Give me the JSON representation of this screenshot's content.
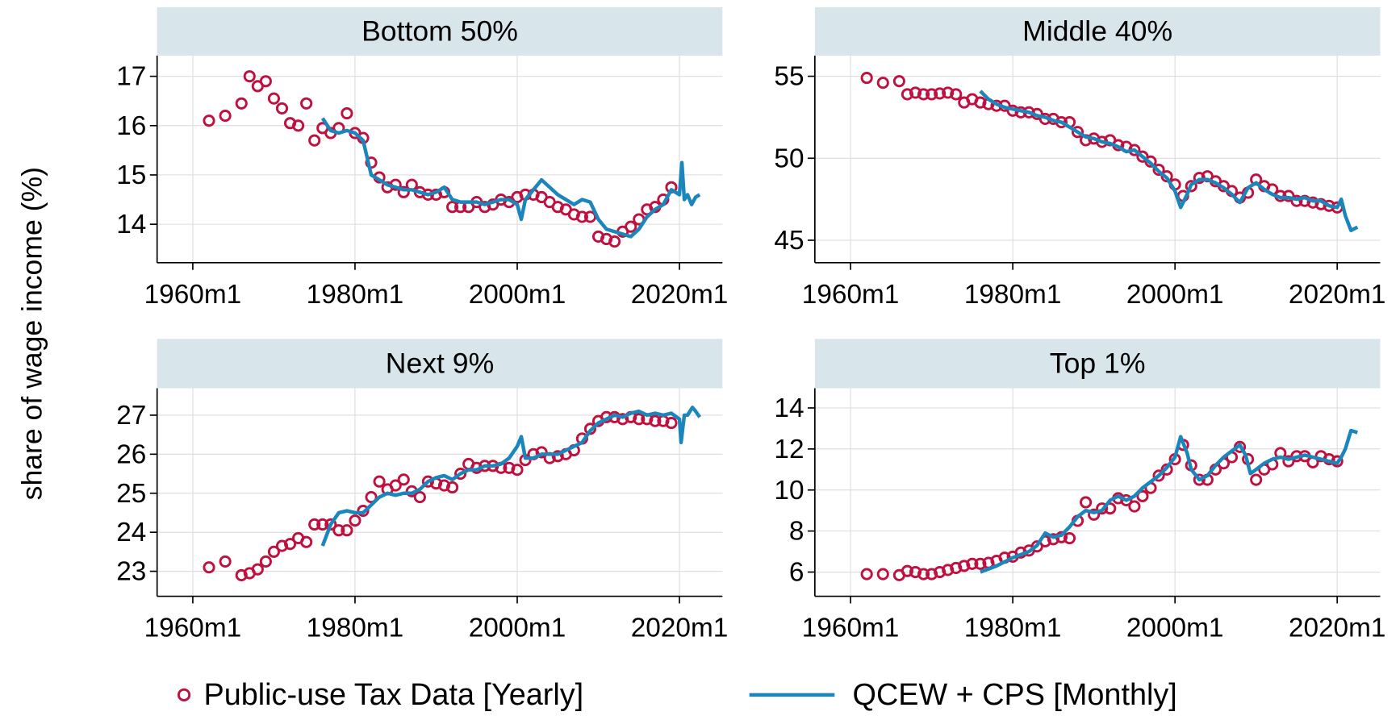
{
  "y_label": "share of wage income (%)",
  "legend": [
    {
      "name": "Public-use Tax Data [Yearly]",
      "color": "#c0103f",
      "marker": "circle"
    },
    {
      "name": "QCEW + CPS [Monthly]",
      "color": "#1a86bb",
      "marker": "line"
    }
  ],
  "chart_data": [
    {
      "type": "line",
      "title": "Bottom 50%",
      "grid": true,
      "xlim": [
        1955.6,
        2025.3
      ],
      "xticks": [
        {
          "value": 1960,
          "label": "1960m1"
        },
        {
          "value": 1980,
          "label": "1980m1"
        },
        {
          "value": 2000,
          "label": "2000m1"
        },
        {
          "value": 2020,
          "label": "2020m1"
        }
      ],
      "ylim": [
        13.22,
        17.42
      ],
      "yticks": [
        14,
        15,
        16,
        17
      ],
      "series": [
        {
          "x": [
            1962,
            1964,
            1966,
            1967,
            1968,
            1969,
            1970,
            1971,
            1972,
            1973,
            1974,
            1975,
            1976,
            1977,
            1978,
            1979,
            1980,
            1981,
            1982,
            1983,
            1984,
            1985,
            1986,
            1987,
            1988,
            1989,
            1990,
            1991,
            1992,
            1993,
            1994,
            1995,
            1996,
            1997,
            1998,
            1999,
            2000,
            2001,
            2002,
            2003,
            2004,
            2005,
            2006,
            2007,
            2008,
            2009,
            2010,
            2011,
            2012,
            2013,
            2014,
            2015,
            2016,
            2017,
            2018,
            2019
          ],
          "values": [
            16.1,
            16.2,
            16.45,
            17.0,
            16.8,
            16.9,
            16.55,
            16.35,
            16.05,
            16.0,
            16.45,
            15.7,
            15.95,
            15.85,
            15.95,
            16.25,
            15.85,
            15.75,
            15.25,
            14.95,
            14.75,
            14.8,
            14.65,
            14.8,
            14.65,
            14.6,
            14.6,
            14.65,
            14.35,
            14.35,
            14.35,
            14.45,
            14.35,
            14.4,
            14.5,
            14.45,
            14.55,
            14.6,
            14.6,
            14.55,
            14.45,
            14.35,
            14.3,
            14.2,
            14.15,
            14.15,
            13.75,
            13.7,
            13.65,
            13.85,
            13.95,
            14.1,
            14.3,
            14.35,
            14.5,
            14.75
          ]
        },
        {
          "x": [
            1976,
            1977,
            1978,
            1979,
            1980,
            1981,
            1982,
            1983,
            1984,
            1985,
            1986,
            1987,
            1988,
            1989,
            1990,
            1991,
            1992,
            1993,
            1994,
            1995,
            1996,
            1997,
            1998,
            1999,
            2000,
            2000.5,
            2001,
            2002,
            2003,
            2004,
            2005,
            2006,
            2007,
            2008,
            2009,
            2010,
            2011,
            2012,
            2013,
            2014,
            2015,
            2016,
            2017,
            2018,
            2019,
            2020,
            2020.3,
            2020.6,
            2021,
            2021.5,
            2022,
            2022.5
          ],
          "values": [
            16.15,
            15.9,
            15.85,
            15.9,
            15.85,
            15.7,
            15.0,
            14.9,
            14.8,
            14.75,
            14.7,
            14.7,
            14.65,
            14.6,
            14.65,
            14.75,
            14.5,
            14.45,
            14.45,
            14.45,
            14.4,
            14.45,
            14.5,
            14.5,
            14.4,
            14.1,
            14.5,
            14.7,
            14.9,
            14.75,
            14.6,
            14.5,
            14.4,
            14.5,
            14.45,
            14.1,
            13.9,
            13.85,
            13.8,
            13.75,
            13.9,
            14.15,
            14.3,
            14.4,
            14.7,
            14.6,
            15.25,
            14.5,
            14.6,
            14.4,
            14.55,
            14.6
          ]
        }
      ]
    },
    {
      "type": "line",
      "title": "Middle 40%",
      "grid": true,
      "xlim": [
        1955.6,
        2025.3
      ],
      "xticks": [
        {
          "value": 1960,
          "label": "1960m1"
        },
        {
          "value": 1980,
          "label": "1980m1"
        },
        {
          "value": 2000,
          "label": "2000m1"
        },
        {
          "value": 2020,
          "label": "2020m1"
        }
      ],
      "ylim": [
        43.63,
        56.26
      ],
      "yticks": [
        45,
        50,
        55
      ],
      "series": [
        {
          "x": [
            1962,
            1964,
            1966,
            1967,
            1968,
            1969,
            1970,
            1971,
            1972,
            1973,
            1974,
            1975,
            1976,
            1977,
            1978,
            1979,
            1980,
            1981,
            1982,
            1983,
            1984,
            1985,
            1986,
            1987,
            1988,
            1989,
            1990,
            1991,
            1992,
            1993,
            1994,
            1995,
            1996,
            1997,
            1998,
            1999,
            2000,
            2001,
            2002,
            2003,
            2004,
            2005,
            2006,
            2007,
            2008,
            2009,
            2010,
            2011,
            2012,
            2013,
            2014,
            2015,
            2016,
            2017,
            2018,
            2019,
            2020
          ],
          "values": [
            54.9,
            54.6,
            54.7,
            53.9,
            54.0,
            53.9,
            53.9,
            53.95,
            54.0,
            53.9,
            53.4,
            53.6,
            53.4,
            53.3,
            53.2,
            53.2,
            52.9,
            52.8,
            52.8,
            52.7,
            52.4,
            52.4,
            52.2,
            52.2,
            51.6,
            51.1,
            51.2,
            51.0,
            51.1,
            50.8,
            50.7,
            50.5,
            50.1,
            49.8,
            49.3,
            48.9,
            48.4,
            47.7,
            48.3,
            48.8,
            48.9,
            48.6,
            48.3,
            48.0,
            47.6,
            47.9,
            48.7,
            48.3,
            48.1,
            47.7,
            47.7,
            47.4,
            47.4,
            47.3,
            47.2,
            47.1,
            47.0
          ]
        },
        {
          "x": [
            1976,
            1977,
            1978,
            1979,
            1980,
            1981,
            1982,
            1983,
            1984,
            1985,
            1986,
            1987,
            1988,
            1989,
            1990,
            1991,
            1992,
            1993,
            1994,
            1995,
            1996,
            1997,
            1998,
            1999,
            2000,
            2000.7,
            2001.5,
            2002,
            2003,
            2004,
            2005,
            2006,
            2007,
            2008,
            2009,
            2010,
            2011,
            2012,
            2013,
            2014,
            2015,
            2016,
            2017,
            2018,
            2019,
            2020,
            2020.5,
            2021,
            2021.7,
            2022.5
          ],
          "values": [
            54.1,
            53.6,
            53.3,
            53.1,
            53.0,
            52.9,
            52.8,
            52.6,
            52.5,
            52.3,
            52.2,
            51.9,
            51.6,
            51.3,
            51.2,
            51.0,
            50.9,
            50.7,
            50.4,
            50.5,
            50.1,
            49.7,
            49.2,
            48.8,
            48.0,
            47.0,
            47.8,
            48.4,
            48.7,
            48.7,
            48.5,
            48.2,
            47.8,
            47.3,
            48.2,
            48.5,
            48.1,
            47.8,
            47.6,
            47.6,
            47.5,
            47.6,
            47.4,
            47.4,
            47.1,
            47.0,
            47.5,
            46.5,
            45.6,
            45.8
          ]
        }
      ]
    },
    {
      "type": "line",
      "title": "Next 9%",
      "grid": true,
      "xlim": [
        1955.6,
        2025.3
      ],
      "xticks": [
        {
          "value": 1960,
          "label": "1960m1"
        },
        {
          "value": 1980,
          "label": "1980m1"
        },
        {
          "value": 2000,
          "label": "2000m1"
        },
        {
          "value": 2020,
          "label": "2020m1"
        }
      ],
      "ylim": [
        22.36,
        27.69
      ],
      "yticks": [
        23,
        24,
        25,
        26,
        27
      ],
      "series": [
        {
          "x": [
            1962,
            1964,
            1966,
            1967,
            1968,
            1969,
            1970,
            1971,
            1972,
            1973,
            1974,
            1975,
            1976,
            1977,
            1978,
            1979,
            1980,
            1981,
            1982,
            1983,
            1984,
            1985,
            1986,
            1987,
            1988,
            1989,
            1990,
            1991,
            1992,
            1993,
            1994,
            1995,
            1996,
            1997,
            1998,
            1999,
            2000,
            2001,
            2002,
            2003,
            2004,
            2005,
            2006,
            2007,
            2008,
            2009,
            2010,
            2011,
            2012,
            2013,
            2014,
            2015,
            2016,
            2017,
            2018,
            2019
          ],
          "values": [
            23.1,
            23.25,
            22.9,
            22.95,
            23.05,
            23.25,
            23.5,
            23.65,
            23.7,
            23.85,
            23.75,
            24.2,
            24.2,
            24.2,
            24.05,
            24.05,
            24.3,
            24.55,
            24.9,
            25.3,
            25.1,
            25.2,
            25.35,
            25.05,
            24.9,
            25.3,
            25.25,
            25.2,
            25.15,
            25.5,
            25.75,
            25.65,
            25.7,
            25.7,
            25.65,
            25.65,
            25.6,
            25.85,
            26.0,
            26.05,
            25.9,
            25.95,
            26.0,
            26.1,
            26.4,
            26.65,
            26.85,
            26.95,
            26.95,
            26.9,
            26.95,
            26.9,
            26.9,
            26.85,
            26.85,
            26.8
          ]
        },
        {
          "x": [
            1976,
            1977,
            1978,
            1979,
            1980,
            1981,
            1982,
            1983,
            1984,
            1985,
            1986,
            1987,
            1988,
            1989,
            1990,
            1991,
            1992,
            1993,
            1994,
            1995,
            1996,
            1997,
            1998,
            1999,
            2000,
            2000.5,
            2001,
            2002,
            2003,
            2004,
            2005,
            2006,
            2007,
            2008,
            2009,
            2010,
            2011,
            2012,
            2013,
            2014,
            2015,
            2016,
            2017,
            2018,
            2019,
            2020,
            2020.2,
            2020.6,
            2021,
            2021.6,
            2022,
            2022.5
          ],
          "values": [
            23.65,
            24.2,
            24.5,
            24.55,
            24.5,
            24.5,
            24.7,
            24.9,
            25.0,
            24.95,
            25.0,
            25.0,
            25.1,
            25.3,
            25.4,
            25.45,
            25.35,
            25.5,
            25.6,
            25.6,
            25.7,
            25.7,
            25.75,
            25.9,
            26.2,
            26.45,
            25.9,
            25.9,
            26.0,
            26.0,
            26.0,
            26.1,
            26.2,
            26.3,
            26.6,
            26.8,
            26.9,
            27.0,
            26.95,
            27.05,
            27.1,
            27.0,
            27.05,
            27.0,
            27.05,
            26.9,
            26.3,
            27.0,
            27.0,
            27.2,
            27.1,
            26.95
          ]
        }
      ]
    },
    {
      "type": "line",
      "title": "Top 1%",
      "grid": true,
      "xlim": [
        1955.6,
        2025.3
      ],
      "xticks": [
        {
          "value": 1960,
          "label": "1960m1"
        },
        {
          "value": 1980,
          "label": "1980m1"
        },
        {
          "value": 2000,
          "label": "2000m1"
        },
        {
          "value": 2020,
          "label": "2020m1"
        }
      ],
      "ylim": [
        4.82,
        14.96
      ],
      "yticks": [
        6,
        8,
        10,
        12,
        14
      ],
      "series": [
        {
          "x": [
            1962,
            1964,
            1966,
            1967,
            1968,
            1969,
            1970,
            1971,
            1972,
            1973,
            1974,
            1975,
            1976,
            1977,
            1978,
            1979,
            1980,
            1981,
            1982,
            1983,
            1984,
            1985,
            1986,
            1987,
            1988,
            1989,
            1990,
            1991,
            1992,
            1993,
            1994,
            1995,
            1996,
            1997,
            1998,
            1999,
            2000,
            2001,
            2002,
            2003,
            2004,
            2005,
            2006,
            2007,
            2008,
            2009,
            2010,
            2011,
            2012,
            2013,
            2014,
            2015,
            2016,
            2017,
            2018,
            2019,
            2020
          ],
          "values": [
            5.9,
            5.9,
            5.85,
            6.05,
            6.0,
            5.9,
            5.9,
            6.0,
            6.1,
            6.2,
            6.3,
            6.4,
            6.4,
            6.45,
            6.55,
            6.7,
            6.75,
            6.95,
            7.05,
            7.25,
            7.5,
            7.6,
            7.7,
            7.65,
            8.5,
            9.4,
            8.8,
            9.1,
            9.1,
            9.6,
            9.5,
            9.2,
            9.7,
            10.1,
            10.7,
            11.0,
            11.5,
            12.2,
            11.2,
            10.5,
            10.5,
            11.0,
            11.3,
            11.6,
            12.1,
            11.5,
            10.5,
            11.0,
            11.25,
            11.8,
            11.4,
            11.65,
            11.65,
            11.35,
            11.65,
            11.5,
            11.4
          ]
        },
        {
          "x": [
            1976,
            1978,
            1980,
            1982,
            1983,
            1984,
            1985,
            1986,
            1987,
            1988,
            1989,
            1990,
            1991,
            1992,
            1993,
            1994,
            1995,
            1996,
            1997,
            1998,
            1999,
            2000,
            2000.7,
            2001.5,
            2002,
            2003,
            2004,
            2005,
            2006,
            2007,
            2008,
            2008.7,
            2009.3,
            2010,
            2011,
            2012,
            2013,
            2014,
            2015,
            2016,
            2017,
            2018,
            2019,
            2020,
            2020.5,
            2021,
            2021.7,
            2022.5
          ],
          "values": [
            6.0,
            6.3,
            6.7,
            7.0,
            7.3,
            7.9,
            7.7,
            7.8,
            8.2,
            8.7,
            9.0,
            8.9,
            9.0,
            9.5,
            9.7,
            9.5,
            9.7,
            10.1,
            10.4,
            10.7,
            11.1,
            11.6,
            12.6,
            11.8,
            11.0,
            10.5,
            10.7,
            11.2,
            11.6,
            11.9,
            12.2,
            11.7,
            10.8,
            11.0,
            11.3,
            11.5,
            11.6,
            11.5,
            11.6,
            11.7,
            11.6,
            11.5,
            11.4,
            11.3,
            11.6,
            12.0,
            12.9,
            12.8
          ]
        }
      ]
    }
  ]
}
